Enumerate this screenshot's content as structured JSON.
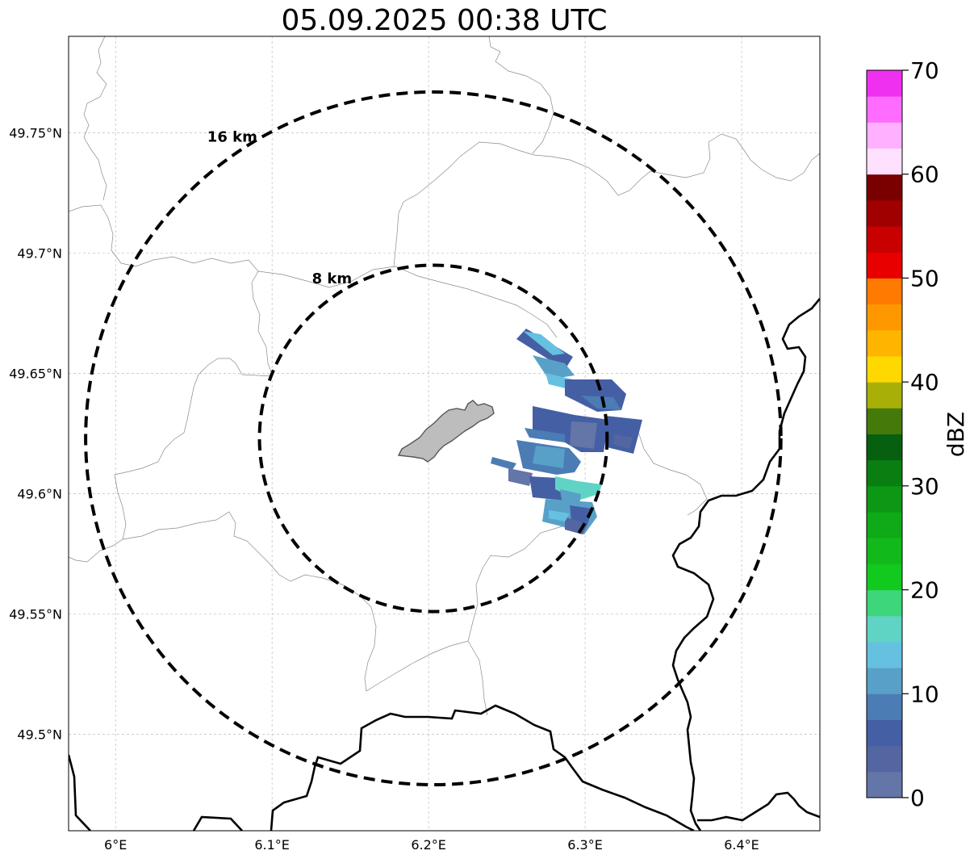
{
  "title": "05.09.2025 00:38 UTC",
  "map": {
    "lon_range": [
      5.97,
      6.45
    ],
    "lat_range": [
      49.46,
      49.79
    ],
    "lat_ticks": [
      {
        "value": 49.5,
        "label": "49.5°N"
      },
      {
        "value": 49.55,
        "label": "49.55°N"
      },
      {
        "value": 49.6,
        "label": "49.6°N"
      },
      {
        "value": 49.65,
        "label": "49.65°N"
      },
      {
        "value": 49.7,
        "label": "49.7°N"
      },
      {
        "value": 49.75,
        "label": "49.75°N"
      }
    ],
    "lon_ticks": [
      {
        "value": 6.0,
        "label": "6°E"
      },
      {
        "value": 6.1,
        "label": "6.1°E"
      },
      {
        "value": 6.2,
        "label": "6.2°E"
      },
      {
        "value": 6.3,
        "label": "6.3°E"
      },
      {
        "value": 6.4,
        "label": "6.4°E"
      }
    ],
    "grid": true,
    "radar_center": {
      "lon": 6.203,
      "lat": 49.623
    },
    "range_rings": [
      {
        "radius_km": 8,
        "label": "8 km"
      },
      {
        "radius_km": 16,
        "label": "16 km"
      }
    ]
  },
  "colorbar": {
    "label": "dBZ",
    "min": 0,
    "max": 70,
    "ticks": [
      {
        "value": 0,
        "label": "0"
      },
      {
        "value": 10,
        "label": "10"
      },
      {
        "value": 20,
        "label": "20"
      },
      {
        "value": 30,
        "label": "30"
      },
      {
        "value": 40,
        "label": "40"
      },
      {
        "value": 50,
        "label": "50"
      },
      {
        "value": 60,
        "label": "60"
      },
      {
        "value": 70,
        "label": "70"
      }
    ],
    "colors": [
      "#6475a8",
      "#5466a2",
      "#455fa4",
      "#4b7cb4",
      "#58a0c8",
      "#66c0e0",
      "#5fd4c4",
      "#3dd67a",
      "#12c91e",
      "#12b91a",
      "#0faa18",
      "#0c9814",
      "#097f12",
      "#066010",
      "#457a0a",
      "#a8b008",
      "#ffd800",
      "#ffb400",
      "#ff9800",
      "#ff7a00",
      "#e80000",
      "#c80000",
      "#a00000",
      "#7a0000",
      "#ffe0ff",
      "#ffb0ff",
      "#ff6cff",
      "#f030f0"
    ]
  }
}
